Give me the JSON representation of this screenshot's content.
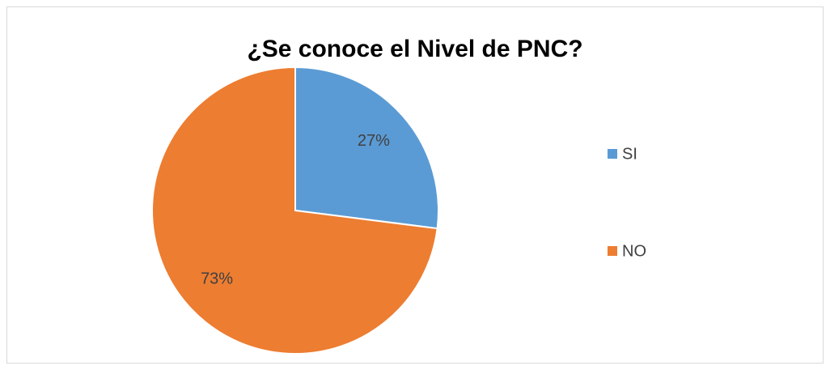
{
  "chart_data": {
    "type": "pie",
    "title": "¿Se conoce el Nivel de PNC?",
    "categories": [
      "SI",
      "NO"
    ],
    "values": [
      27,
      73
    ],
    "value_labels": [
      "27%",
      "73%"
    ],
    "colors": [
      "#5b9bd5",
      "#ed7d31"
    ],
    "legend": "right"
  }
}
